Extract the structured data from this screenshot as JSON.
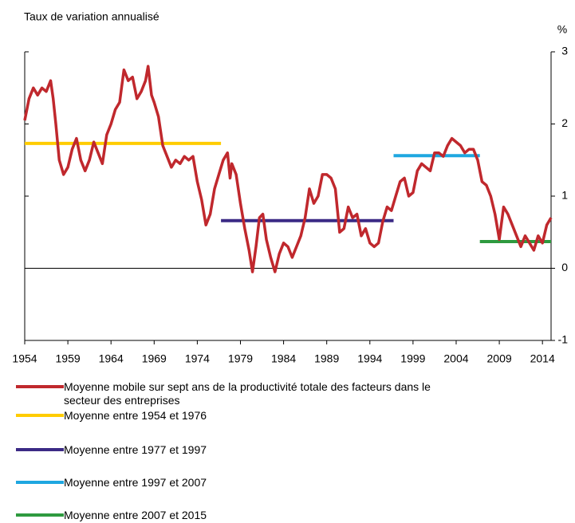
{
  "chart_data": {
    "type": "line",
    "title": "Taux de variation annualisé",
    "y_unit": "%",
    "xlim": [
      1954,
      2015
    ],
    "xticks": [
      1954,
      1959,
      1964,
      1969,
      1974,
      1979,
      1984,
      1989,
      1994,
      1999,
      2004,
      2009,
      2014
    ],
    "ylim": [
      -1,
      3
    ],
    "yticks": [
      -1,
      0,
      1,
      2,
      3
    ],
    "series": [
      {
        "name": "Moyenne mobile sur sept ans de la productivité totale des facteurs dans le secteur des entreprises",
        "color": "#c0282d",
        "x": [
          1954,
          1954.5,
          1955,
          1955.5,
          1956,
          1956.5,
          1957,
          1957.3,
          1957.6,
          1958,
          1958.5,
          1959,
          1959.5,
          1960,
          1960.5,
          1961,
          1961.5,
          1962,
          1962.5,
          1963,
          1963.5,
          1964,
          1964.5,
          1965,
          1965.5,
          1966,
          1966.5,
          1967,
          1967.5,
          1968,
          1968.3,
          1968.7,
          1969,
          1969.5,
          1970,
          1970.5,
          1971,
          1971.5,
          1972,
          1972.5,
          1973,
          1973.5,
          1974,
          1974.5,
          1975,
          1975.5,
          1976,
          1976.5,
          1977,
          1977.5,
          1977.8,
          1978,
          1978.5,
          1979,
          1979.5,
          1980,
          1980.4,
          1980.8,
          1981.2,
          1981.6,
          1982,
          1982.5,
          1983,
          1983.5,
          1984,
          1984.5,
          1985,
          1985.5,
          1986,
          1986.5,
          1987,
          1987.5,
          1988,
          1988.5,
          1989,
          1989.5,
          1990,
          1990.5,
          1991,
          1991.5,
          1992,
          1992.5,
          1993,
          1993.5,
          1994,
          1994.5,
          1995,
          1995.5,
          1996,
          1996.5,
          1997,
          1997.5,
          1998,
          1998.5,
          1999,
          1999.5,
          2000,
          2000.5,
          2001,
          2001.5,
          2002,
          2002.5,
          2003,
          2003.5,
          2004,
          2004.5,
          2005,
          2005.5,
          2006,
          2006.5,
          2007,
          2007.5,
          2008,
          2008.5,
          2009,
          2009.5,
          2010,
          2010.5,
          2011,
          2011.5,
          2012,
          2012.5,
          2013,
          2013.5,
          2014,
          2014.5,
          2015
        ],
        "values": [
          2.05,
          2.35,
          2.5,
          2.4,
          2.5,
          2.45,
          2.6,
          2.35,
          2.0,
          1.5,
          1.3,
          1.4,
          1.65,
          1.8,
          1.5,
          1.35,
          1.5,
          1.75,
          1.6,
          1.45,
          1.85,
          2.0,
          2.2,
          2.3,
          2.75,
          2.6,
          2.65,
          2.35,
          2.45,
          2.6,
          2.8,
          2.4,
          2.3,
          2.1,
          1.7,
          1.55,
          1.4,
          1.5,
          1.45,
          1.55,
          1.5,
          1.55,
          1.2,
          0.95,
          0.6,
          0.75,
          1.1,
          1.3,
          1.5,
          1.6,
          1.25,
          1.45,
          1.3,
          0.9,
          0.55,
          0.25,
          -0.05,
          0.3,
          0.7,
          0.75,
          0.4,
          0.15,
          -0.05,
          0.2,
          0.35,
          0.3,
          0.15,
          0.3,
          0.45,
          0.7,
          1.1,
          0.9,
          1.0,
          1.3,
          1.3,
          1.25,
          1.1,
          0.5,
          0.55,
          0.85,
          0.7,
          0.75,
          0.45,
          0.55,
          0.35,
          0.3,
          0.35,
          0.65,
          0.85,
          0.8,
          1.0,
          1.2,
          1.25,
          1.0,
          1.05,
          1.35,
          1.45,
          1.4,
          1.35,
          1.6,
          1.6,
          1.55,
          1.7,
          1.8,
          1.75,
          1.7,
          1.6,
          1.65,
          1.65,
          1.5,
          1.2,
          1.15,
          1.0,
          0.75,
          0.4,
          0.85,
          0.75,
          0.6,
          0.45,
          0.3,
          0.45,
          0.35,
          0.25,
          0.45,
          0.35,
          0.6,
          0.7
        ]
      },
      {
        "name": "Moyenne entre 1954 et 1976",
        "color": "#ffcc00",
        "x": [
          1954,
          1976.75
        ],
        "values": [
          1.73,
          1.73
        ]
      },
      {
        "name": "Moyenne entre 1977 et 1997",
        "color": "#3b2a85",
        "x": [
          1976.75,
          1996.75
        ],
        "values": [
          0.66,
          0.66
        ]
      },
      {
        "name": "Moyenne entre 1997 et 2007",
        "color": "#1fa7e0",
        "x": [
          1996.75,
          2006.75
        ],
        "values": [
          1.56,
          1.56
        ]
      },
      {
        "name": "Moyenne entre 2007 et 2015",
        "color": "#2e9a3f",
        "x": [
          2006.75,
          2015
        ],
        "values": [
          0.37,
          0.37
        ]
      }
    ]
  }
}
